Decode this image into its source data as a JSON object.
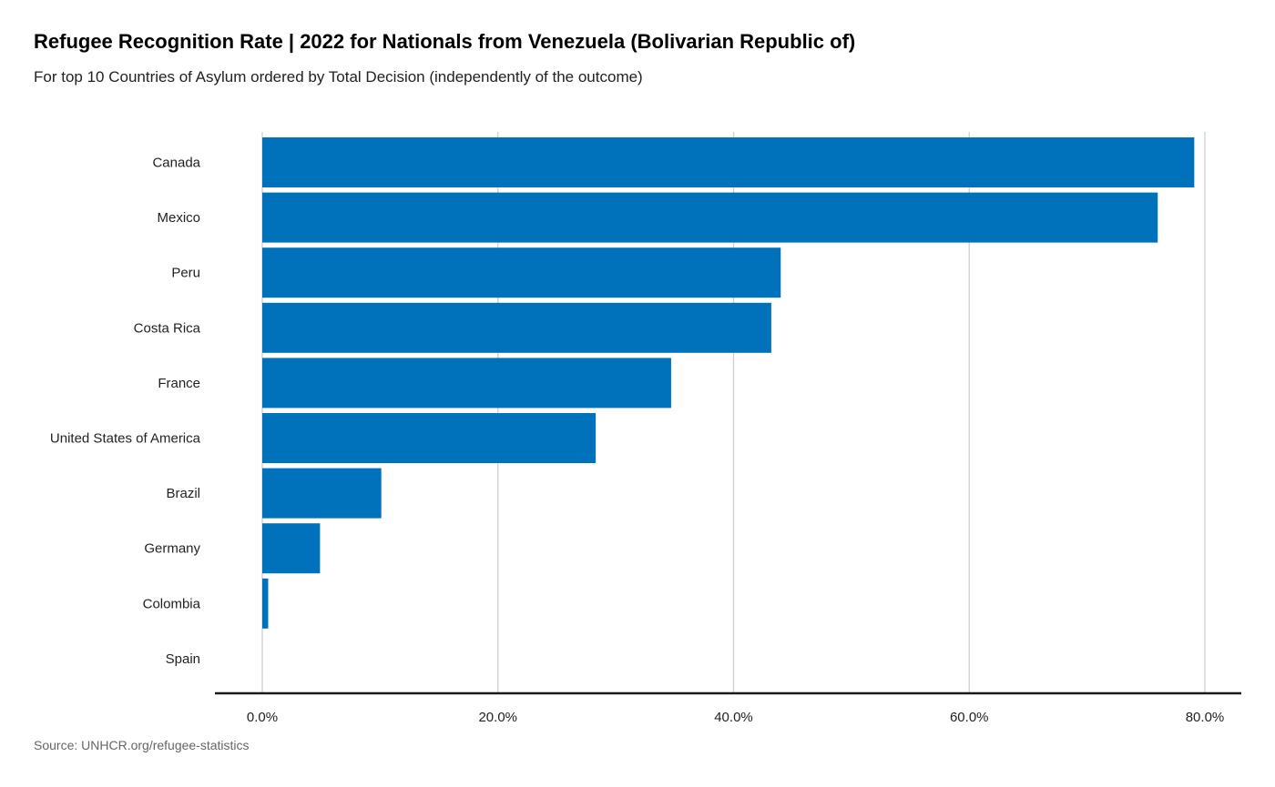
{
  "chart_data": {
    "type": "bar",
    "orientation": "horizontal",
    "title": "Refugee Recognition Rate | 2022 for Nationals from Venezuela (Bolivarian Republic of)",
    "subtitle": "For top 10 Countries of Asylum ordered by Total Decision (independently of the outcome)",
    "caption": "Source: UNHCR.org/refugee-statistics",
    "categories": [
      "Canada",
      "Mexico",
      "Peru",
      "Costa Rica",
      "France",
      "United States of America",
      "Brazil",
      "Germany",
      "Colombia",
      "Spain"
    ],
    "values": [
      79.1,
      76.0,
      44.0,
      43.2,
      34.7,
      28.3,
      10.1,
      4.9,
      0.5,
      0.0
    ],
    "xlim": [
      0,
      80
    ],
    "xticks": [
      0,
      20,
      40,
      60,
      80
    ],
    "xtick_labels": [
      "0.0%",
      "20.0%",
      "40.0%",
      "60.0%",
      "80.0%"
    ],
    "xlabel": "",
    "ylabel": "",
    "grid": "vertical",
    "bar_color": "#0072BC"
  }
}
